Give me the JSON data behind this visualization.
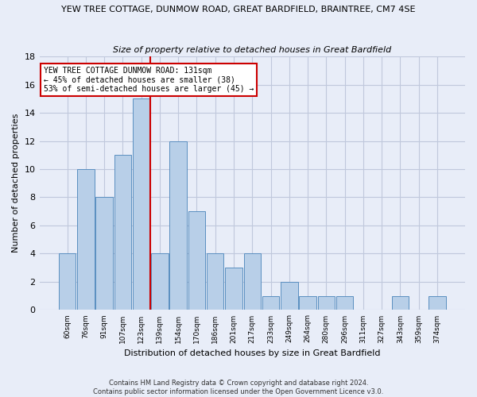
{
  "title": "YEW TREE COTTAGE, DUNMOW ROAD, GREAT BARDFIELD, BRAINTREE, CM7 4SE",
  "subtitle": "Size of property relative to detached houses in Great Bardfield",
  "xlabel": "Distribution of detached houses by size in Great Bardfield",
  "ylabel": "Number of detached properties",
  "bar_labels": [
    "60sqm",
    "76sqm",
    "91sqm",
    "107sqm",
    "123sqm",
    "139sqm",
    "154sqm",
    "170sqm",
    "186sqm",
    "201sqm",
    "217sqm",
    "233sqm",
    "249sqm",
    "264sqm",
    "280sqm",
    "296sqm",
    "311sqm",
    "327sqm",
    "343sqm",
    "359sqm",
    "374sqm"
  ],
  "bar_values": [
    4,
    10,
    8,
    11,
    15,
    4,
    12,
    7,
    4,
    3,
    4,
    1,
    2,
    1,
    1,
    1,
    0,
    0,
    1,
    0,
    1
  ],
  "bar_color": "#b8cfe8",
  "bar_edge_color": "#5a8fc0",
  "vline_x": 4.5,
  "vline_color": "#cc0000",
  "ylim": [
    0,
    18
  ],
  "yticks": [
    0,
    2,
    4,
    6,
    8,
    10,
    12,
    14,
    16,
    18
  ],
  "annotation_text": "YEW TREE COTTAGE DUNMOW ROAD: 131sqm\n← 45% of detached houses are smaller (38)\n53% of semi-detached houses are larger (45) →",
  "annotation_box_facecolor": "#ffffff",
  "annotation_box_edgecolor": "#cc0000",
  "footer_line1": "Contains HM Land Registry data © Crown copyright and database right 2024.",
  "footer_line2": "Contains public sector information licensed under the Open Government Licence v3.0.",
  "background_color": "#e8edf8",
  "grid_color": "#c0c8dc"
}
